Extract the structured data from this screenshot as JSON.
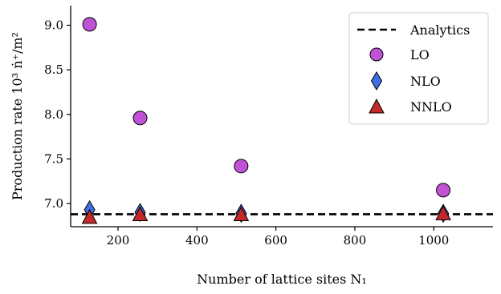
{
  "chart_data": {
    "type": "scatter",
    "title": "",
    "xlabel": "Number of lattice sites N₁",
    "ylabel": "Production rate 10³ ṅ⁺/m²",
    "xlim": [
      80,
      1150
    ],
    "ylim": [
      6.74,
      9.22
    ],
    "x_ticks": [
      200,
      400,
      600,
      800,
      1000
    ],
    "y_ticks": [
      7.0,
      7.5,
      8.0,
      8.5,
      9.0
    ],
    "x_tick_labels": [
      "200",
      "400",
      "600",
      "800",
      "1000"
    ],
    "y_tick_labels": [
      "7.0",
      "7.5",
      "8.0",
      "8.5",
      "9.0"
    ],
    "grid": false,
    "legend_position": "top-right",
    "reference_line": {
      "name": "Analytics",
      "y": 6.88,
      "style": "dashed",
      "color": "#000000"
    },
    "series": [
      {
        "name": "LO",
        "marker": "circle",
        "color": "#c052d6",
        "x": [
          128,
          256,
          512,
          1024
        ],
        "y": [
          9.01,
          7.96,
          7.42,
          7.15
        ]
      },
      {
        "name": "NLO",
        "marker": "diamond",
        "color": "#3f6fe0",
        "x": [
          128,
          256,
          512,
          1024
        ],
        "y": [
          6.93,
          6.9,
          6.89,
          6.89
        ]
      },
      {
        "name": "NNLO",
        "marker": "triangle",
        "color": "#c42828",
        "x": [
          128,
          256,
          512,
          1024
        ],
        "y": [
          6.84,
          6.87,
          6.87,
          6.88
        ]
      }
    ]
  }
}
